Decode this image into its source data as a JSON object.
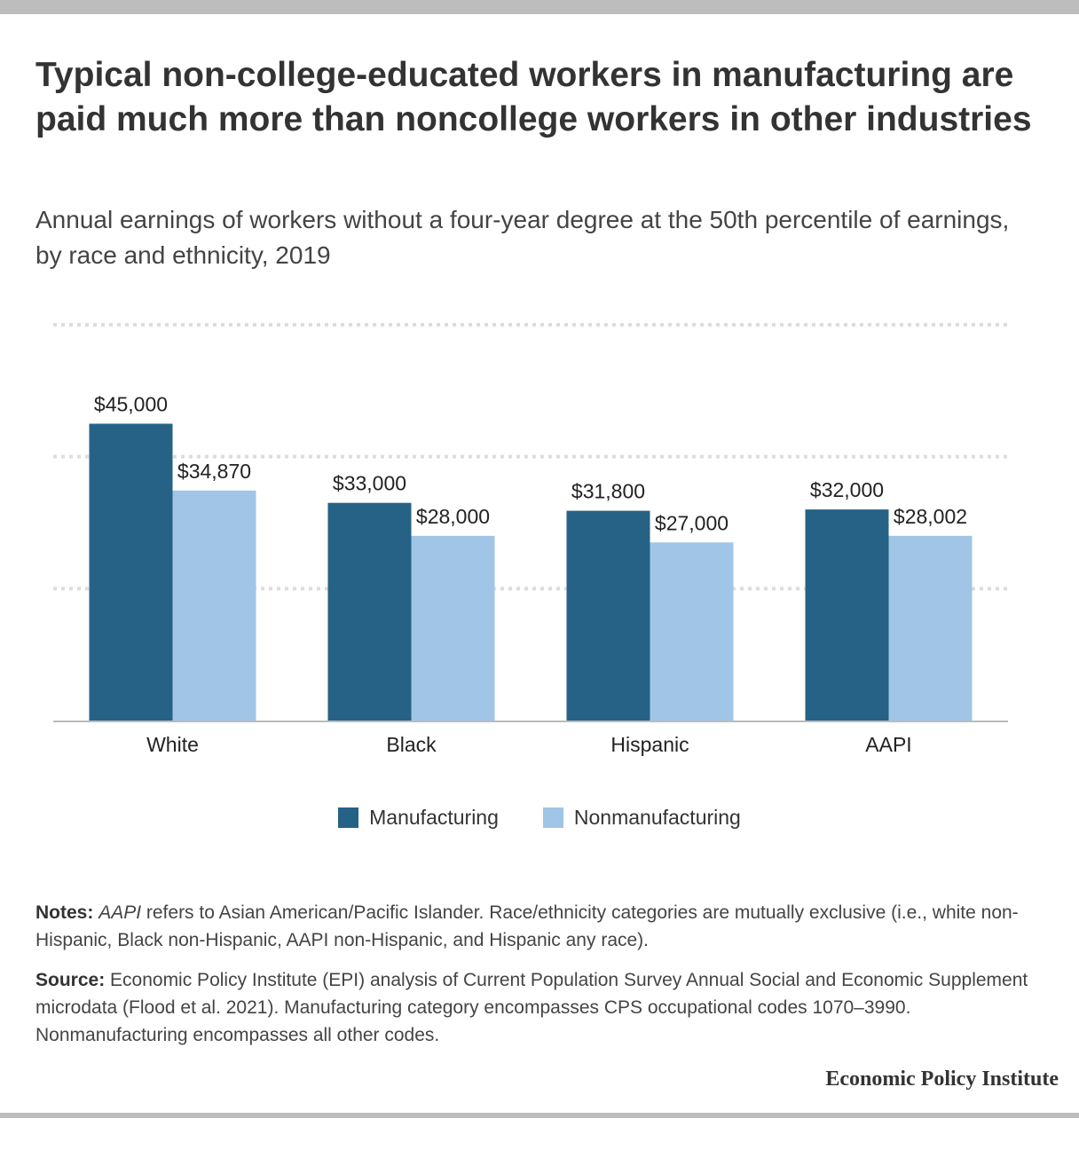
{
  "title": "Typical non-college-educated workers in manufacturing are paid much more than noncollege workers in other industries",
  "subtitle": "Annual earnings of workers without a four-year degree at the 50th percentile of earnings, by race and ethnicity, 2019",
  "chart_data": {
    "type": "bar",
    "categories": [
      "White",
      "Black",
      "Hispanic",
      "AAPI"
    ],
    "series": [
      {
        "name": "Manufacturing",
        "color": "#266285",
        "values": [
          45000,
          33000,
          31800,
          32000
        ],
        "labels": [
          "$45,000",
          "$33,000",
          "$31,800",
          "$32,000"
        ]
      },
      {
        "name": "Nonmanufacturing",
        "color": "#a0c5e6",
        "values": [
          34870,
          28000,
          27000,
          28002
        ],
        "labels": [
          "$34,870",
          "$28,000",
          "$27,000",
          "$28,002"
        ]
      }
    ],
    "ylim": [
      0,
      60000
    ],
    "gridlines": [
      0,
      20000,
      40000,
      60000
    ],
    "grid": true,
    "legend_position": "bottom-center"
  },
  "notes": {
    "label": "Notes:",
    "term": "AAPI",
    "text": " refers to Asian American/Pacific Islander. Race/ethnicity categories are mutually exclusive (i.e., white non-Hispanic, Black non-Hispanic, AAPI non-Hispanic, and Hispanic any race)."
  },
  "source": {
    "label": "Source:",
    "text": " Economic Policy Institute (EPI) analysis of Current Population Survey Annual Social and Economic Supplement microdata (Flood et al. 2021). Manufacturing category encompasses CPS occupational codes 1070–3990. Nonmanufacturing encompasses all other codes."
  },
  "brand": "Economic Policy Institute"
}
